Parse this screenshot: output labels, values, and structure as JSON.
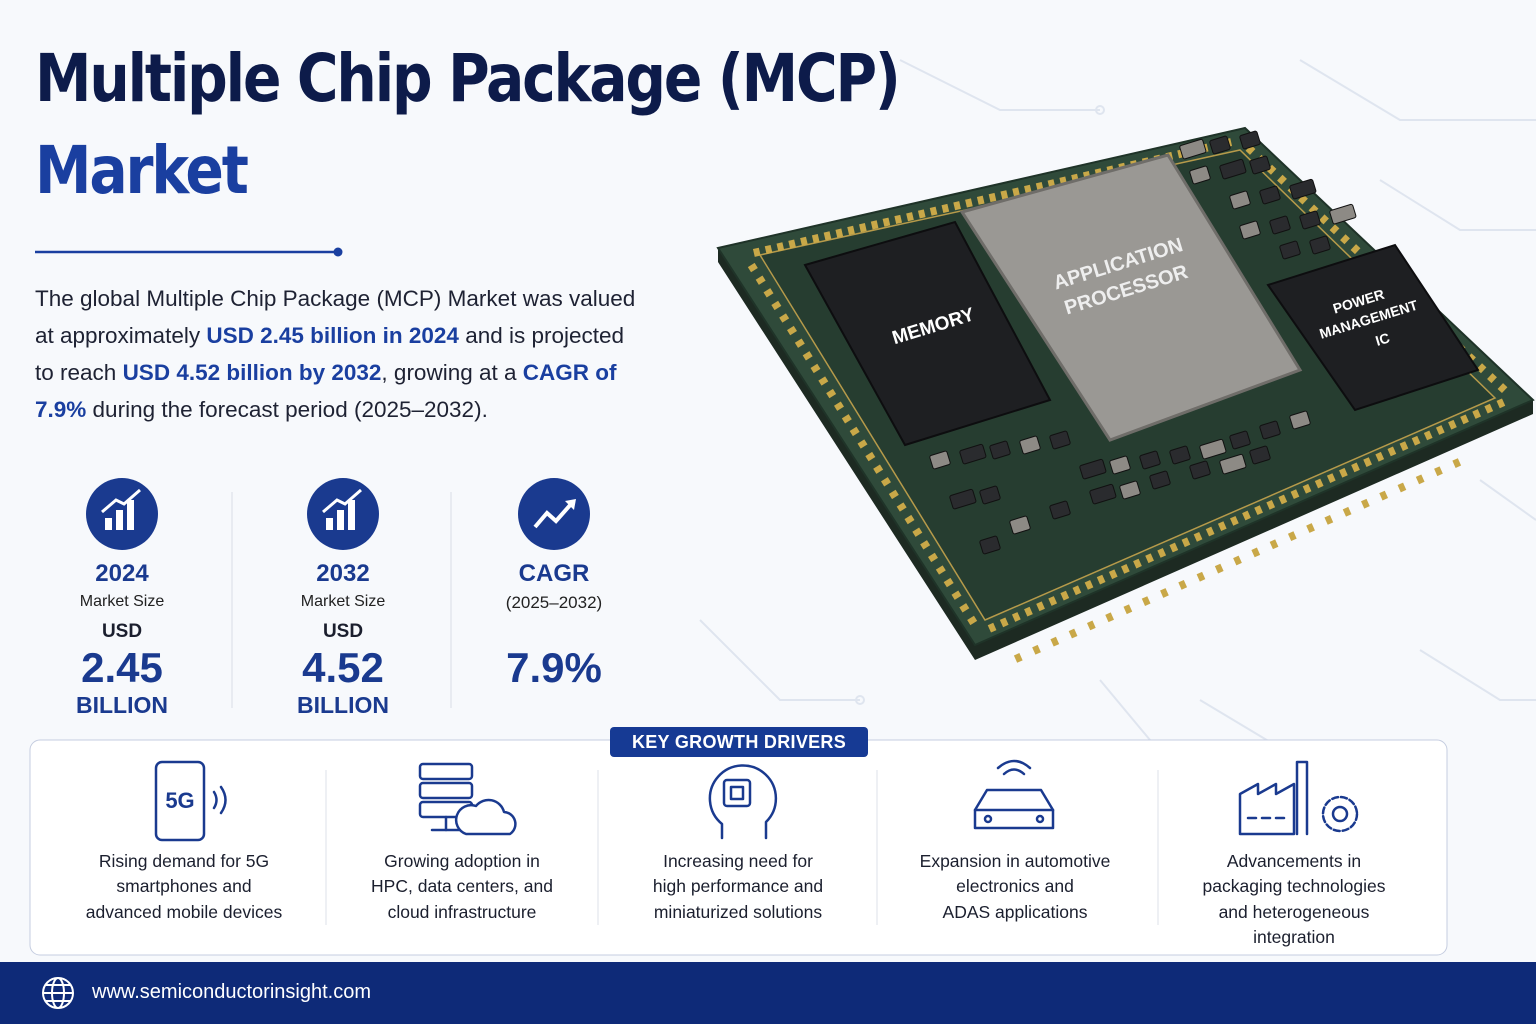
{
  "header": {
    "title_line1": "Multiple Chip Package (MCP)",
    "title_line2": "Market"
  },
  "intro": {
    "segments": [
      "The global Multiple Chip Package (MCP) Market was valued at approximately ",
      "USD 2.45 billion in 2024",
      " and is projected to reach ",
      "USD 4.52 billion by 2032",
      ", growing at a ",
      "CAGR of 7.9%",
      " during the forecast period (2025–2032)."
    ]
  },
  "stats": [
    {
      "heading": "2024",
      "subheading": "Market Size",
      "unit": "USD",
      "value": "2.45",
      "scale": "BILLION"
    },
    {
      "heading": "2032",
      "subheading": "Market Size",
      "unit": "USD",
      "value": "4.52",
      "scale": "BILLION"
    },
    {
      "heading": "CAGR",
      "subheading": "(2025–2032)",
      "value": "7.9%"
    }
  ],
  "chip": {
    "memory": [
      "MEMORY"
    ],
    "processor": [
      "APPLICATION",
      "PROCESSOR"
    ],
    "power": [
      "POWER",
      "MANAGEMENT",
      "IC"
    ]
  },
  "drivers": {
    "label": "KEY GROWTH DRIVERS",
    "phone_icon_text": "5G",
    "items": [
      {
        "lines": [
          "Rising demand for 5G",
          "smartphones and",
          "advanced mobile devices"
        ]
      },
      {
        "lines": [
          "Growing adoption in",
          "HPC, data centers, and",
          "cloud infrastructure"
        ]
      },
      {
        "lines": [
          "Increasing need for",
          "high performance and",
          "miniaturized solutions"
        ]
      },
      {
        "lines": [
          "Expansion in automotive",
          "electronics and",
          "ADAS applications"
        ]
      },
      {
        "lines": [
          "Advancements in",
          "packaging technologies",
          "and heterogeneous",
          "integration"
        ]
      }
    ]
  },
  "footer": {
    "url": "www.semiconductorinsight.com"
  }
}
